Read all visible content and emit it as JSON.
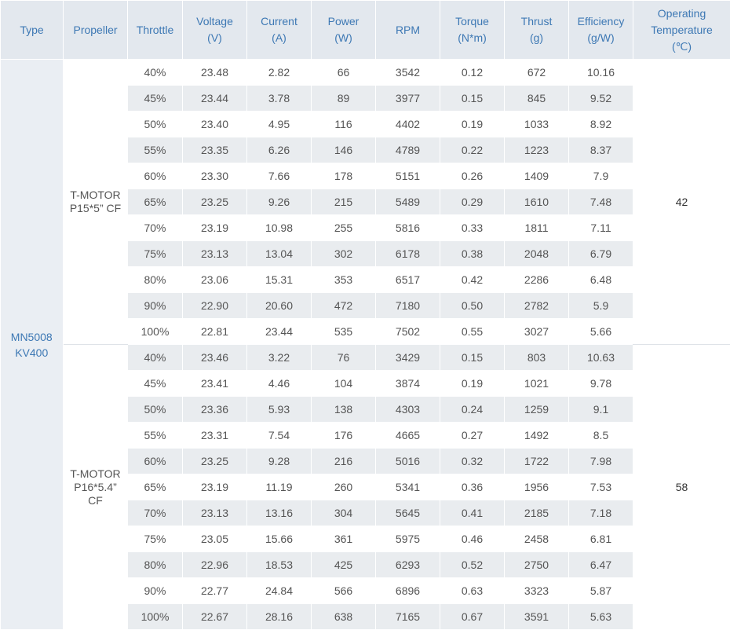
{
  "headers": {
    "type": "Type",
    "propeller": "Propeller",
    "throttle": "Throttle",
    "voltage": "Voltage\n(V)",
    "current": "Current\n(A)",
    "power": "Power\n(W)",
    "rpm": "RPM",
    "torque": "Torque\n(N*m)",
    "thrust": "Thrust\n(g)",
    "efficiency": "Efficiency\n(g/W)",
    "temperature": "Operating\nTemperature\n(℃)"
  },
  "motor_type": "MN5008\nKV400",
  "groups": [
    {
      "propeller": "T-MOTOR\nP15*5” CF",
      "temperature": "42",
      "rows": [
        [
          "40%",
          "23.48",
          "2.82",
          "66",
          "3542",
          "0.12",
          "672",
          "10.16"
        ],
        [
          "45%",
          "23.44",
          "3.78",
          "89",
          "3977",
          "0.15",
          "845",
          "9.52"
        ],
        [
          "50%",
          "23.40",
          "4.95",
          "116",
          "4402",
          "0.19",
          "1033",
          "8.92"
        ],
        [
          "55%",
          "23.35",
          "6.26",
          "146",
          "4789",
          "0.22",
          "1223",
          "8.37"
        ],
        [
          "60%",
          "23.30",
          "7.66",
          "178",
          "5151",
          "0.26",
          "1409",
          "7.9"
        ],
        [
          "65%",
          "23.25",
          "9.26",
          "215",
          "5489",
          "0.29",
          "1610",
          "7.48"
        ],
        [
          "70%",
          "23.19",
          "10.98",
          "255",
          "5816",
          "0.33",
          "1811",
          "7.11"
        ],
        [
          "75%",
          "23.13",
          "13.04",
          "302",
          "6178",
          "0.38",
          "2048",
          "6.79"
        ],
        [
          "80%",
          "23.06",
          "15.31",
          "353",
          "6517",
          "0.42",
          "2286",
          "6.48"
        ],
        [
          "90%",
          "22.90",
          "20.60",
          "472",
          "7180",
          "0.50",
          "2782",
          "5.9"
        ],
        [
          "100%",
          "22.81",
          "23.44",
          "535",
          "7502",
          "0.55",
          "3027",
          "5.66"
        ]
      ]
    },
    {
      "propeller": "T-MOTOR\nP16*5.4”\nCF",
      "temperature": "58",
      "rows": [
        [
          "40%",
          "23.46",
          "3.22",
          "76",
          "3429",
          "0.15",
          "803",
          "10.63"
        ],
        [
          "45%",
          "23.41",
          "4.46",
          "104",
          "3874",
          "0.19",
          "1021",
          "9.78"
        ],
        [
          "50%",
          "23.36",
          "5.93",
          "138",
          "4303",
          "0.24",
          "1259",
          "9.1"
        ],
        [
          "55%",
          "23.31",
          "7.54",
          "176",
          "4665",
          "0.27",
          "1492",
          "8.5"
        ],
        [
          "60%",
          "23.25",
          "9.28",
          "216",
          "5016",
          "0.32",
          "1722",
          "7.98"
        ],
        [
          "65%",
          "23.19",
          "11.19",
          "260",
          "5341",
          "0.36",
          "1956",
          "7.53"
        ],
        [
          "70%",
          "23.13",
          "13.16",
          "304",
          "5645",
          "0.41",
          "2185",
          "7.18"
        ],
        [
          "75%",
          "23.05",
          "15.66",
          "361",
          "5975",
          "0.46",
          "2458",
          "6.81"
        ],
        [
          "80%",
          "22.96",
          "18.53",
          "425",
          "6293",
          "0.52",
          "2750",
          "6.47"
        ],
        [
          "90%",
          "22.77",
          "24.84",
          "566",
          "6896",
          "0.63",
          "3323",
          "5.87"
        ],
        [
          "100%",
          "22.67",
          "28.16",
          "638",
          "7165",
          "0.67",
          "3591",
          "5.63"
        ]
      ]
    }
  ],
  "colors": {
    "header_bg": "#e3e8ee",
    "header_text": "#3d78b4",
    "stripe_bg": "#e9ecef",
    "type_bg": "#eaeef3",
    "cell_text": "#555555"
  }
}
